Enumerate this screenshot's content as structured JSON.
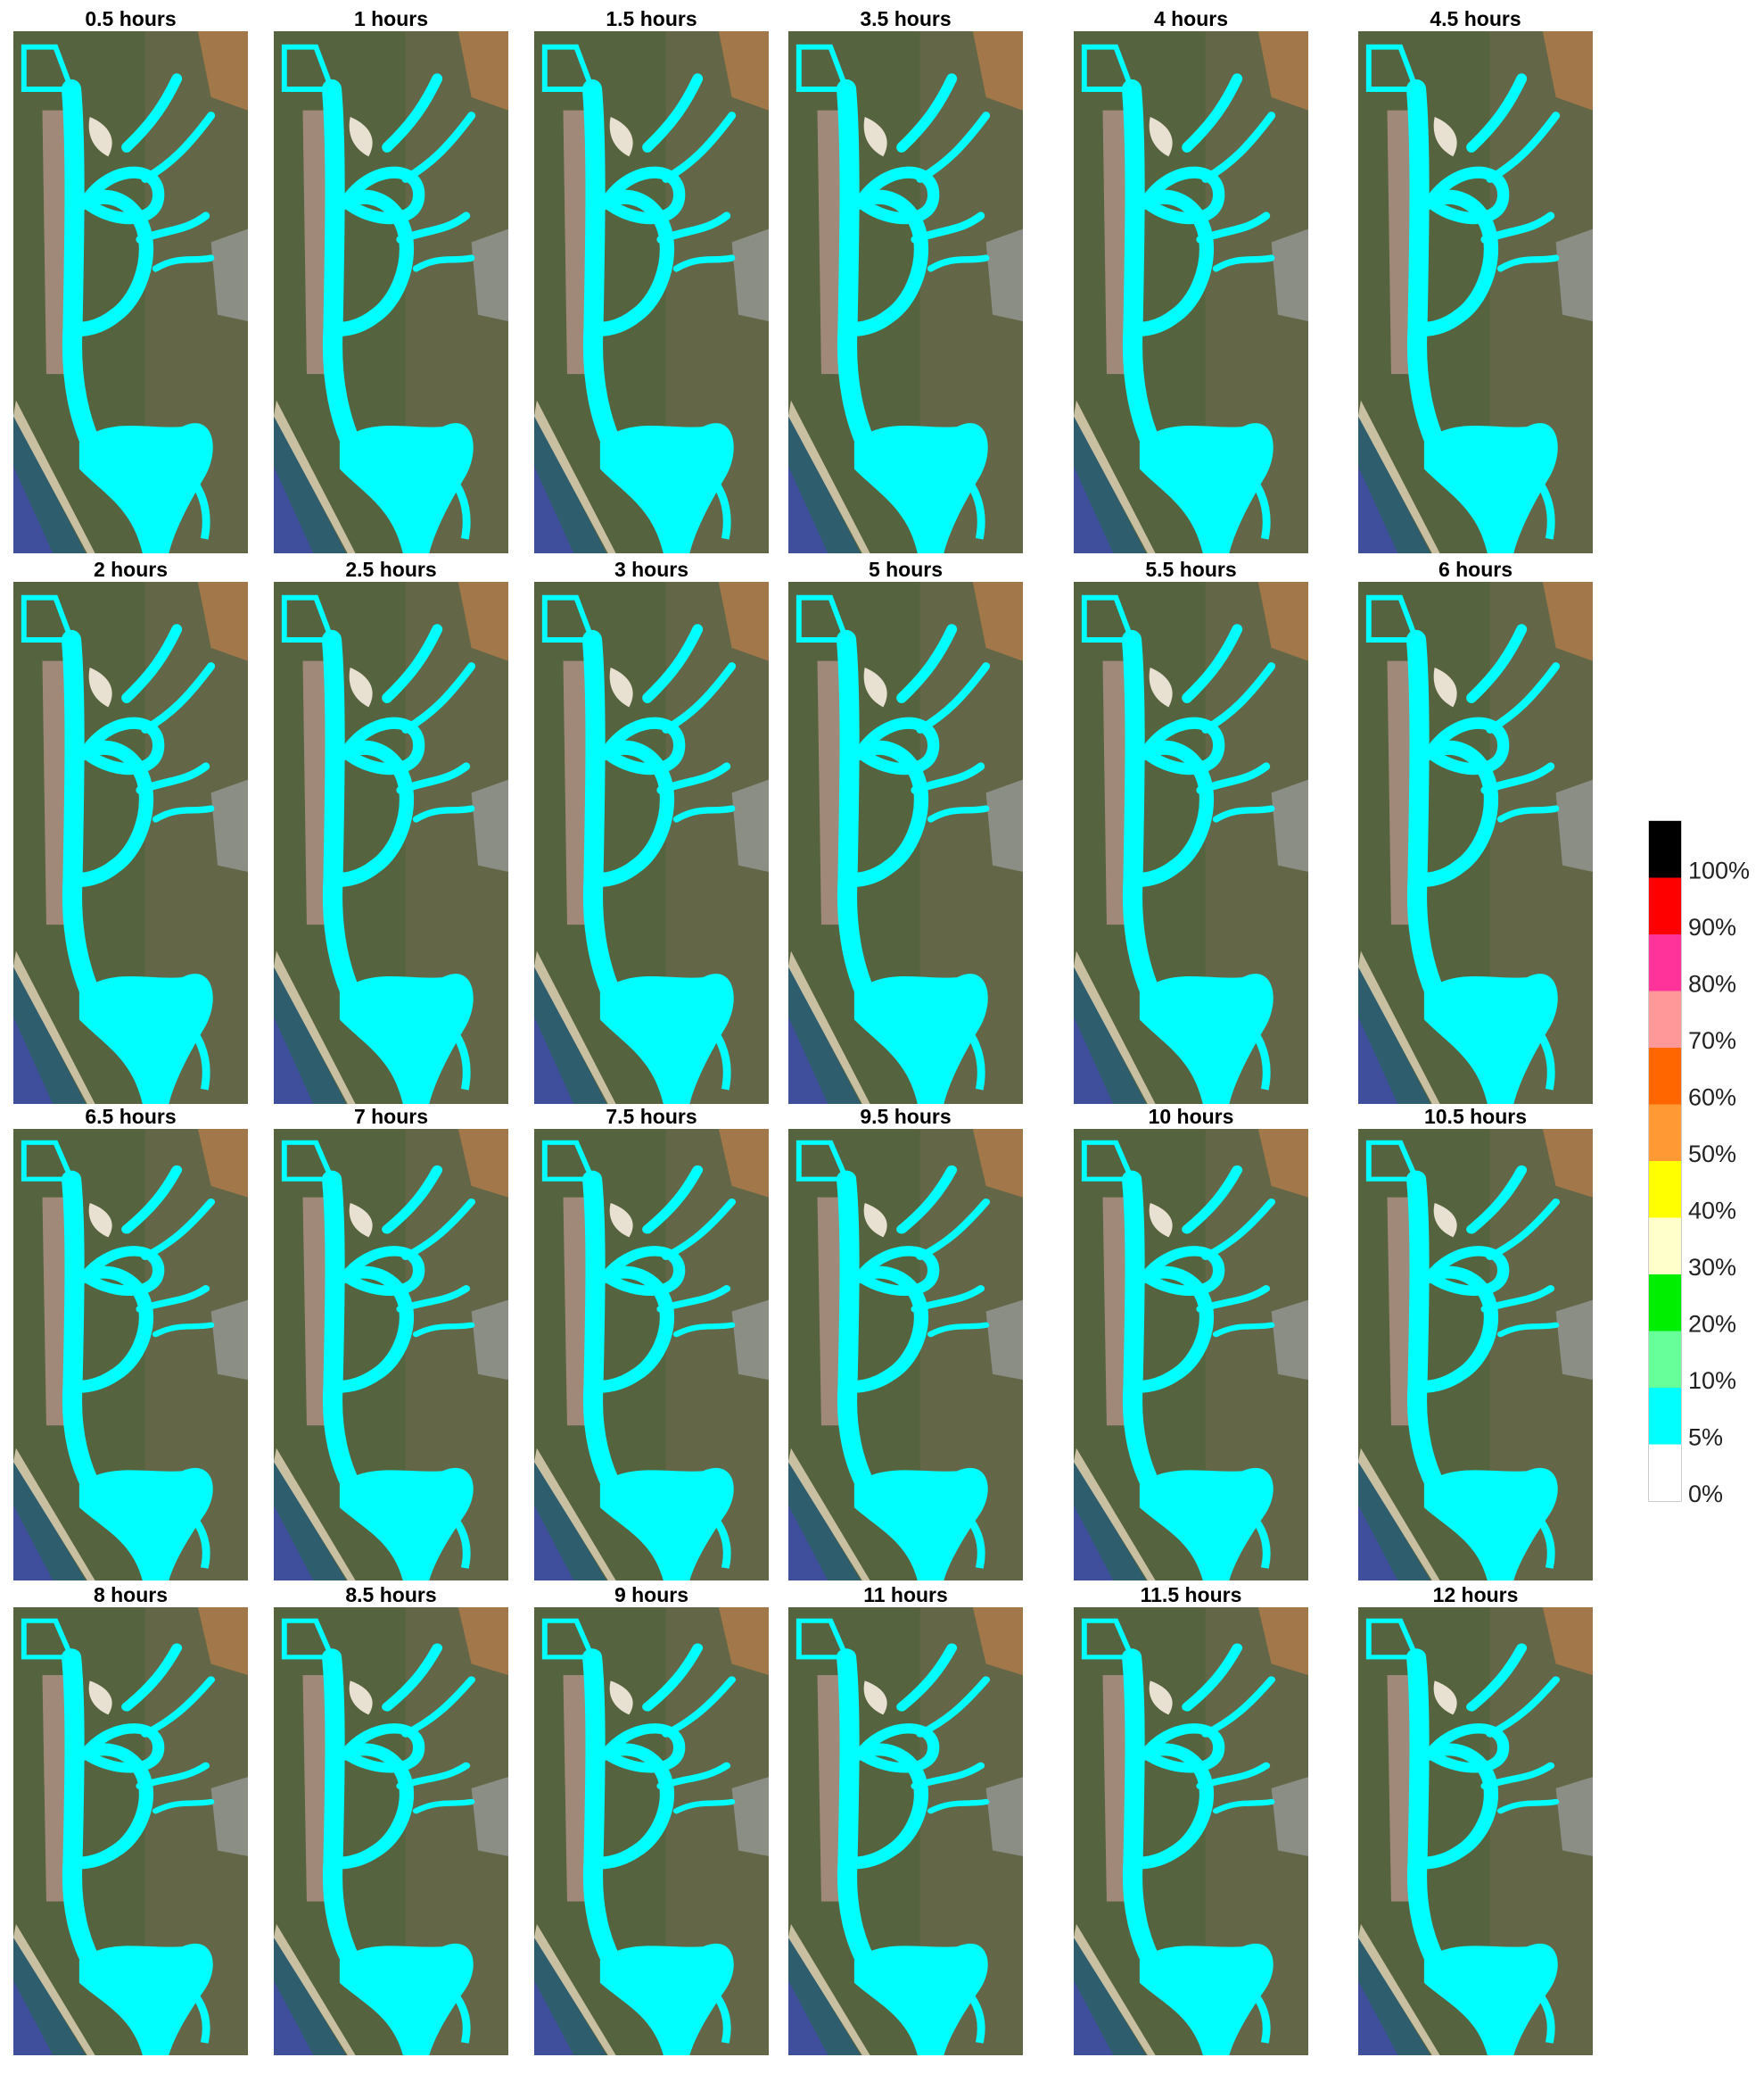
{
  "panels": [
    {
      "title": "0.5 hours"
    },
    {
      "title": "1 hours"
    },
    {
      "title": "1.5 hours"
    },
    {
      "title": "3.5 hours"
    },
    {
      "title": "4 hours"
    },
    {
      "title": "4.5 hours"
    },
    {
      "title": "2 hours"
    },
    {
      "title": "2.5 hours"
    },
    {
      "title": "3 hours"
    },
    {
      "title": "5 hours"
    },
    {
      "title": "5.5 hours"
    },
    {
      "title": "6 hours"
    },
    {
      "title": "6.5 hours"
    },
    {
      "title": "7 hours"
    },
    {
      "title": "7.5 hours"
    },
    {
      "title": "9.5 hours"
    },
    {
      "title": "10 hours"
    },
    {
      "title": "10.5 hours"
    },
    {
      "title": "8 hours"
    },
    {
      "title": "8.5 hours"
    },
    {
      "title": "9 hours"
    },
    {
      "title": "11 hours"
    },
    {
      "title": "11.5 hours"
    },
    {
      "title": "12 hours"
    }
  ],
  "legend": {
    "labels": [
      "100%",
      "90%",
      "80%",
      "70%",
      "60%",
      "50%",
      "40%",
      "30%",
      "20%",
      "10%",
      "5%",
      "0%"
    ],
    "colors": [
      "#000000",
      "#ff0000",
      "#ff3399",
      "#ff9999",
      "#ff6600",
      "#ff9933",
      "#ffff00",
      "#ffffcc",
      "#00ee00",
      "#66ff99",
      "#00ffff",
      "#ffffff"
    ]
  }
}
